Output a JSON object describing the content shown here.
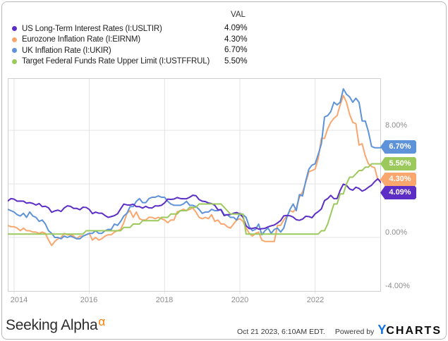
{
  "legend": {
    "val_header": "VAL",
    "items": [
      {
        "label": "US Long-Term Interest Rates (I:USLTIR)",
        "value": "4.09%",
        "color": "#5C2EC5"
      },
      {
        "label": "Eurozone Inflation Rate (I:EIRNM)",
        "value": "4.30%",
        "color": "#F9A76E"
      },
      {
        "label": "UK Inflation Rate (I:UKIR)",
        "value": "6.70%",
        "color": "#5E93D9"
      },
      {
        "label": "Target Federal Funds Rate Upper Limit (I:USTFFRUL)",
        "value": "5.50%",
        "color": "#9BC95B"
      }
    ]
  },
  "chart_data": {
    "type": "line",
    "title": "",
    "xlabel": "",
    "ylabel": "",
    "frequency": "monthly",
    "x_range": [
      "Nov 2013",
      "Oct 2023"
    ],
    "ylim": [
      -4,
      12
    ],
    "grid": true,
    "x_tick_labels": [
      "2014",
      "2016",
      "2018",
      "2020",
      "2022"
    ],
    "x_gridline_indices": [
      2,
      26,
      50,
      74,
      98
    ],
    "y_tick_labels_visible": [
      "8.00%",
      "0.00%",
      "-4.00%"
    ],
    "y_gridline_values": [
      8,
      4,
      0
    ],
    "draw_order": [
      1,
      2,
      0,
      3
    ],
    "series": [
      {
        "name": "US Long-Term Interest Rates (I:USLTIR)",
        "color": "#5C2EC5",
        "values": [
          2.72,
          2.9,
          2.86,
          2.71,
          2.72,
          2.71,
          2.56,
          2.6,
          2.54,
          2.42,
          2.53,
          2.3,
          2.33,
          2.21,
          1.88,
          1.98,
          2.04,
          1.94,
          2.2,
          2.36,
          2.32,
          2.17,
          2.17,
          2.07,
          2.26,
          2.24,
          2.09,
          1.78,
          1.89,
          1.81,
          1.81,
          1.64,
          1.5,
          1.56,
          1.63,
          1.76,
          2.14,
          2.49,
          2.43,
          2.42,
          2.48,
          2.3,
          2.3,
          2.19,
          2.32,
          2.21,
          2.2,
          2.36,
          2.35,
          2.4,
          2.58,
          2.86,
          2.84,
          2.87,
          2.98,
          2.91,
          2.89,
          2.89,
          3.0,
          3.15,
          3.12,
          2.83,
          2.71,
          2.68,
          2.57,
          2.53,
          2.4,
          2.07,
          2.06,
          1.63,
          1.7,
          1.71,
          1.81,
          1.86,
          1.76,
          1.5,
          0.87,
          0.66,
          0.67,
          0.73,
          0.62,
          0.65,
          0.68,
          0.79,
          0.87,
          0.93,
          1.08,
          1.26,
          1.61,
          1.64,
          1.62,
          1.52,
          1.32,
          1.28,
          1.37,
          1.58,
          1.56,
          1.47,
          1.76,
          1.93,
          2.13,
          2.75,
          2.9,
          3.14,
          2.9,
          2.9,
          3.52,
          3.98,
          3.89,
          3.62,
          3.53,
          3.75,
          3.66,
          3.46,
          3.57,
          3.75,
          3.9,
          4.17,
          4.38,
          4.09
        ]
      },
      {
        "name": "Eurozone Inflation Rate (I:EIRNM)",
        "color": "#F9A76E",
        "values": [
          0.9,
          0.8,
          0.8,
          0.7,
          0.5,
          0.7,
          0.5,
          0.5,
          0.4,
          0.4,
          0.3,
          0.4,
          0.3,
          -0.2,
          -0.6,
          -0.3,
          -0.1,
          0.0,
          0.3,
          0.2,
          0.2,
          0.1,
          -0.1,
          0.1,
          0.1,
          0.2,
          0.3,
          -0.2,
          0.0,
          -0.2,
          -0.1,
          0.1,
          0.2,
          0.2,
          0.4,
          0.5,
          0.6,
          1.1,
          1.8,
          2.0,
          1.5,
          1.9,
          1.4,
          1.3,
          1.3,
          1.5,
          1.5,
          1.4,
          1.5,
          1.4,
          1.3,
          1.1,
          1.3,
          1.3,
          1.9,
          2.0,
          2.1,
          2.0,
          2.1,
          2.2,
          1.9,
          1.5,
          1.4,
          1.5,
          1.4,
          1.7,
          1.2,
          1.3,
          1.0,
          1.0,
          0.8,
          0.7,
          1.0,
          1.3,
          1.4,
          1.2,
          0.7,
          0.3,
          0.1,
          0.3,
          0.4,
          -0.2,
          -0.3,
          -0.3,
          -0.3,
          -0.3,
          0.9,
          0.9,
          1.3,
          1.6,
          2.0,
          1.9,
          2.2,
          3.0,
          3.4,
          4.1,
          4.9,
          5.0,
          5.1,
          5.9,
          7.4,
          7.4,
          8.1,
          8.6,
          8.9,
          9.1,
          9.9,
          10.6,
          10.1,
          9.2,
          8.6,
          8.5,
          6.9,
          7.0,
          6.1,
          5.5,
          5.3,
          5.2,
          4.3,
          4.3
        ]
      },
      {
        "name": "UK Inflation Rate (I:UKIR)",
        "color": "#5E93D9",
        "values": [
          2.1,
          2.0,
          1.9,
          1.7,
          1.6,
          1.8,
          1.5,
          1.9,
          1.6,
          1.5,
          1.2,
          1.3,
          1.0,
          0.5,
          0.3,
          0.0,
          0.0,
          -0.1,
          0.1,
          0.0,
          0.1,
          0.0,
          -0.1,
          -0.1,
          0.1,
          0.2,
          0.3,
          0.3,
          0.5,
          0.3,
          0.3,
          0.5,
          0.6,
          0.6,
          1.0,
          0.9,
          1.2,
          1.6,
          1.8,
          2.3,
          2.3,
          2.7,
          2.9,
          2.6,
          2.6,
          2.9,
          3.0,
          3.0,
          3.1,
          3.0,
          3.0,
          2.7,
          2.5,
          2.4,
          2.4,
          2.4,
          2.5,
          2.7,
          2.4,
          2.4,
          2.3,
          2.1,
          1.8,
          1.9,
          1.9,
          2.1,
          2.0,
          2.0,
          2.1,
          1.7,
          1.7,
          1.5,
          1.5,
          1.3,
          1.8,
          1.7,
          1.5,
          0.8,
          0.5,
          0.6,
          1.0,
          0.2,
          0.5,
          0.7,
          0.3,
          0.6,
          0.7,
          0.4,
          0.7,
          1.5,
          2.1,
          2.5,
          2.0,
          3.2,
          3.1,
          4.2,
          5.1,
          5.4,
          5.5,
          6.2,
          7.0,
          9.0,
          9.1,
          9.4,
          10.1,
          9.9,
          10.1,
          11.1,
          10.7,
          10.5,
          10.1,
          10.4,
          10.1,
          8.7,
          8.7,
          7.9,
          6.8,
          6.7,
          6.7,
          6.7
        ]
      },
      {
        "name": "Target Federal Funds Rate Upper Limit (I:USTFFRUL)",
        "color": "#9BC95B",
        "values": [
          0.25,
          0.25,
          0.25,
          0.25,
          0.25,
          0.25,
          0.25,
          0.25,
          0.25,
          0.25,
          0.25,
          0.25,
          0.25,
          0.25,
          0.25,
          0.25,
          0.25,
          0.25,
          0.25,
          0.25,
          0.25,
          0.25,
          0.25,
          0.25,
          0.25,
          0.5,
          0.5,
          0.5,
          0.5,
          0.5,
          0.5,
          0.5,
          0.5,
          0.5,
          0.5,
          0.5,
          0.5,
          0.75,
          0.75,
          0.75,
          1.0,
          1.0,
          1.0,
          1.25,
          1.25,
          1.25,
          1.25,
          1.25,
          1.25,
          1.5,
          1.5,
          1.5,
          1.75,
          1.75,
          1.75,
          2.0,
          2.0,
          2.0,
          2.25,
          2.25,
          2.25,
          2.5,
          2.5,
          2.5,
          2.5,
          2.5,
          2.5,
          2.5,
          2.5,
          2.25,
          2.0,
          1.75,
          1.75,
          1.75,
          1.75,
          1.75,
          0.25,
          0.25,
          0.25,
          0.25,
          0.25,
          0.25,
          0.25,
          0.25,
          0.25,
          0.25,
          0.25,
          0.25,
          0.25,
          0.25,
          0.25,
          0.25,
          0.25,
          0.25,
          0.25,
          0.25,
          0.25,
          0.25,
          0.25,
          0.25,
          0.5,
          0.5,
          1.0,
          1.75,
          2.5,
          2.5,
          3.25,
          3.25,
          4.0,
          4.5,
          4.5,
          4.75,
          5.0,
          5.0,
          5.25,
          5.25,
          5.5,
          5.5,
          5.5,
          5.5
        ]
      }
    ]
  },
  "footer": {
    "brand": "Seeking Alpha",
    "brand_alpha": "α",
    "timestamp": "Oct 21 2023, 6:10AM EDT.",
    "powered_by": "Powered by",
    "provider_y": "Y",
    "provider_rest": "CHARTS"
  }
}
